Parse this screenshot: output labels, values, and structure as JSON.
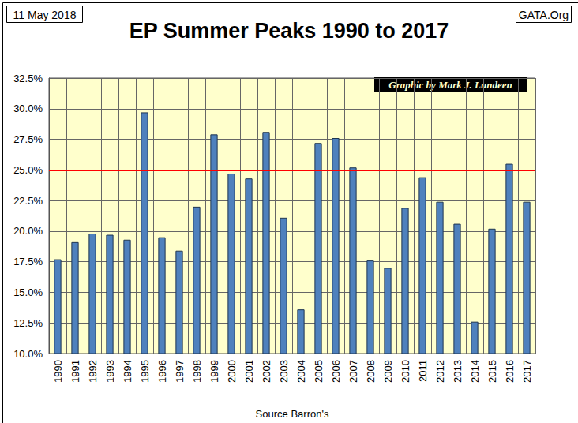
{
  "chart_data": {
    "type": "bar",
    "title": "EP Summer Peaks 1990 to 2017",
    "x_label": "Source Barron's",
    "annotations": [
      "11 May 2018",
      "GATA.Org",
      "Graphic by Mark J. Lundeen"
    ],
    "categories": [
      "1990",
      "1991",
      "1992",
      "1993",
      "1994",
      "1995",
      "1996",
      "1997",
      "1998",
      "1999",
      "2000",
      "2001",
      "2002",
      "2003",
      "2004",
      "2005",
      "2006",
      "2007",
      "2008",
      "2009",
      "2010",
      "2011",
      "2012",
      "2013",
      "2014",
      "2015",
      "2016",
      "2017"
    ],
    "values": [
      17.7,
      19.1,
      19.8,
      19.7,
      19.3,
      29.7,
      19.5,
      18.4,
      22.0,
      27.9,
      24.7,
      24.3,
      28.1,
      21.1,
      13.6,
      27.2,
      27.6,
      25.2,
      17.6,
      17.0,
      21.9,
      24.4,
      22.4,
      20.6,
      12.6,
      20.2,
      25.5,
      22.4
    ],
    "color": "#4f81bd",
    "reference_lines": [
      {
        "value": 25,
        "color": "#ff0000"
      }
    ],
    "ylim": [
      10,
      32.5
    ],
    "yticks": [
      {
        "value": 10,
        "label": "10.0%"
      },
      {
        "value": 12.5,
        "label": "12.5%"
      },
      {
        "value": 15,
        "label": "15.0%"
      },
      {
        "value": 17.5,
        "label": "17.5%"
      },
      {
        "value": 20,
        "label": "20.0%"
      },
      {
        "value": 22.5,
        "label": "22.5%"
      },
      {
        "value": 25,
        "label": "25.0%"
      },
      {
        "value": 27.5,
        "label": "27.5%"
      },
      {
        "value": 30,
        "label": "30.0%"
      },
      {
        "value": 32.5,
        "label": "32.5%"
      }
    ],
    "grid": true
  }
}
